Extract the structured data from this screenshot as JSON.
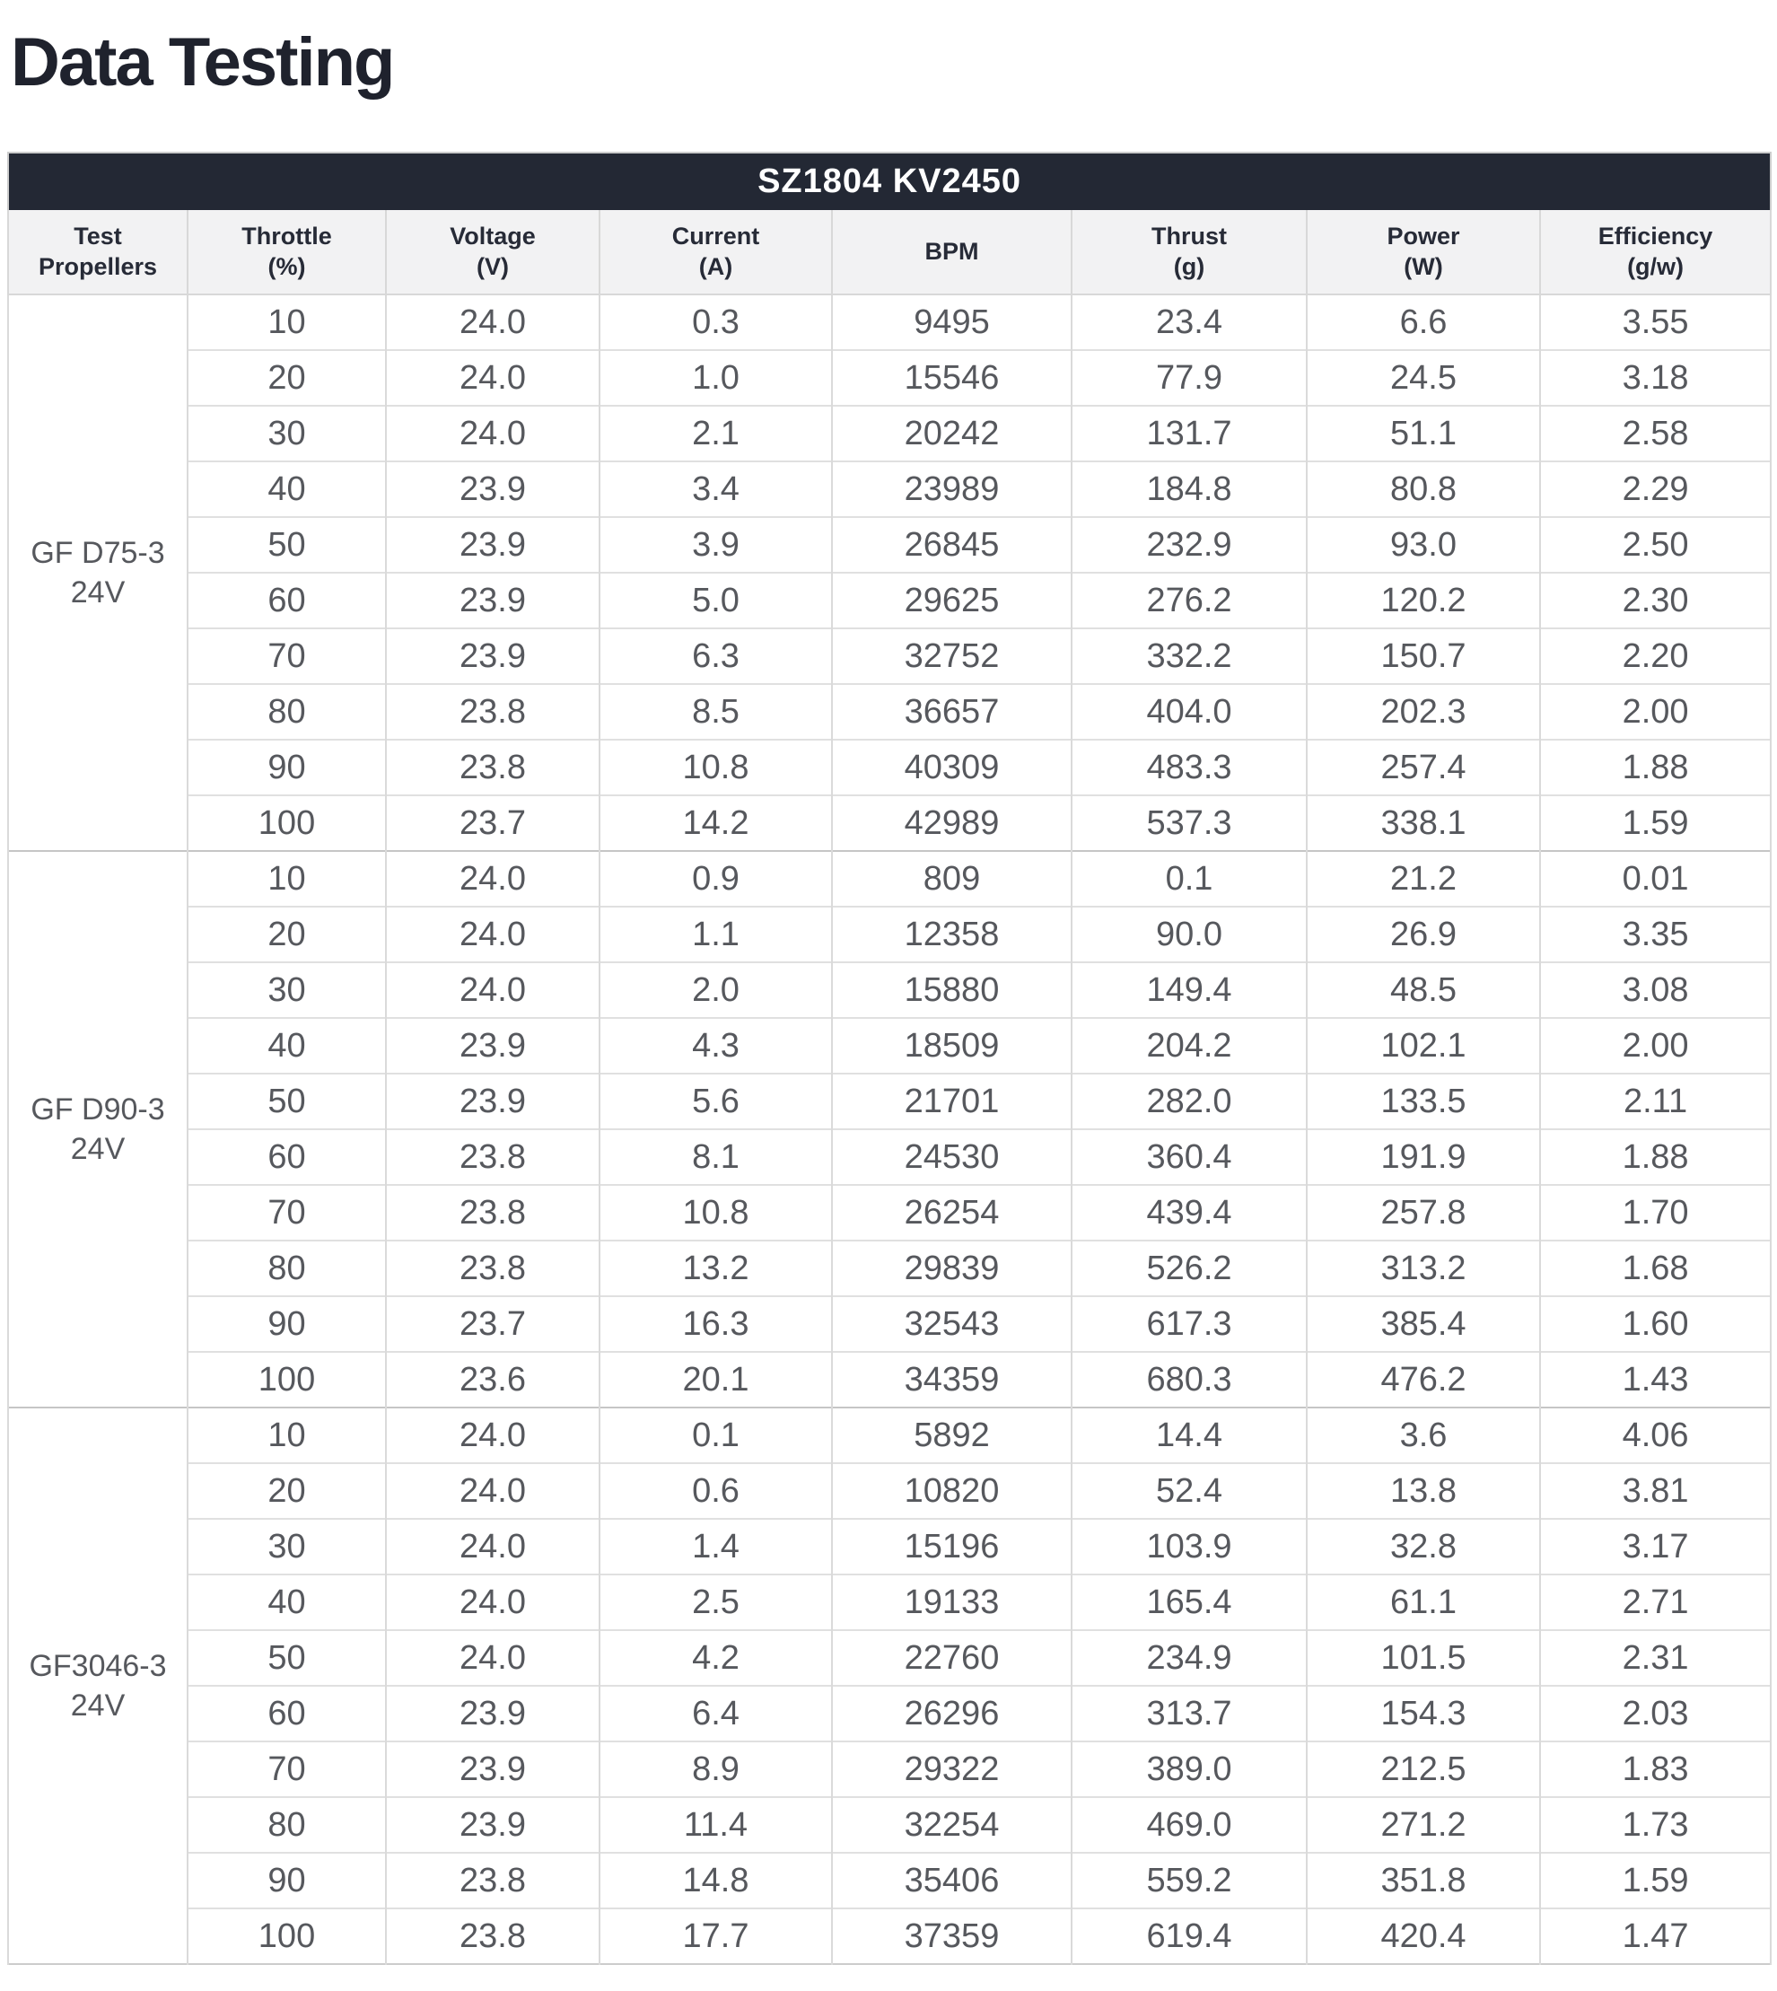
{
  "page": {
    "title": "Data Testing"
  },
  "colors": {
    "header_bar_bg": "#232834",
    "title_text": "#1f222d",
    "header_row_bg": "#f2f2f3",
    "data_text": "#56585d"
  },
  "table": {
    "title": "SZ1804 KV2450",
    "columns": [
      "Test\nPropellers",
      "Throttle\n(%)",
      "Voltage\n(V)",
      "Current\n(A)",
      "BPM",
      "Thrust\n(g)",
      "Power\n(W)",
      "Efficiency\n(g/w)"
    ],
    "groups": [
      {
        "label": "GF D75-3\n24V",
        "rows": [
          [
            "10",
            "24.0",
            "0.3",
            "9495",
            "23.4",
            "6.6",
            "3.55"
          ],
          [
            "20",
            "24.0",
            "1.0",
            "15546",
            "77.9",
            "24.5",
            "3.18"
          ],
          [
            "30",
            "24.0",
            "2.1",
            "20242",
            "131.7",
            "51.1",
            "2.58"
          ],
          [
            "40",
            "23.9",
            "3.4",
            "23989",
            "184.8",
            "80.8",
            "2.29"
          ],
          [
            "50",
            "23.9",
            "3.9",
            "26845",
            "232.9",
            "93.0",
            "2.50"
          ],
          [
            "60",
            "23.9",
            "5.0",
            "29625",
            "276.2",
            "120.2",
            "2.30"
          ],
          [
            "70",
            "23.9",
            "6.3",
            "32752",
            "332.2",
            "150.7",
            "2.20"
          ],
          [
            "80",
            "23.8",
            "8.5",
            "36657",
            "404.0",
            "202.3",
            "2.00"
          ],
          [
            "90",
            "23.8",
            "10.8",
            "40309",
            "483.3",
            "257.4",
            "1.88"
          ],
          [
            "100",
            "23.7",
            "14.2",
            "42989",
            "537.3",
            "338.1",
            "1.59"
          ]
        ]
      },
      {
        "label": "GF D90-3\n24V",
        "rows": [
          [
            "10",
            "24.0",
            "0.9",
            "809",
            "0.1",
            "21.2",
            "0.01"
          ],
          [
            "20",
            "24.0",
            "1.1",
            "12358",
            "90.0",
            "26.9",
            "3.35"
          ],
          [
            "30",
            "24.0",
            "2.0",
            "15880",
            "149.4",
            "48.5",
            "3.08"
          ],
          [
            "40",
            "23.9",
            "4.3",
            "18509",
            "204.2",
            "102.1",
            "2.00"
          ],
          [
            "50",
            "23.9",
            "5.6",
            "21701",
            "282.0",
            "133.5",
            "2.11"
          ],
          [
            "60",
            "23.8",
            "8.1",
            "24530",
            "360.4",
            "191.9",
            "1.88"
          ],
          [
            "70",
            "23.8",
            "10.8",
            "26254",
            "439.4",
            "257.8",
            "1.70"
          ],
          [
            "80",
            "23.8",
            "13.2",
            "29839",
            "526.2",
            "313.2",
            "1.68"
          ],
          [
            "90",
            "23.7",
            "16.3",
            "32543",
            "617.3",
            "385.4",
            "1.60"
          ],
          [
            "100",
            "23.6",
            "20.1",
            "34359",
            "680.3",
            "476.2",
            "1.43"
          ]
        ]
      },
      {
        "label": "GF3046-3\n24V",
        "rows": [
          [
            "10",
            "24.0",
            "0.1",
            "5892",
            "14.4",
            "3.6",
            "4.06"
          ],
          [
            "20",
            "24.0",
            "0.6",
            "10820",
            "52.4",
            "13.8",
            "3.81"
          ],
          [
            "30",
            "24.0",
            "1.4",
            "15196",
            "103.9",
            "32.8",
            "3.17"
          ],
          [
            "40",
            "24.0",
            "2.5",
            "19133",
            "165.4",
            "61.1",
            "2.71"
          ],
          [
            "50",
            "24.0",
            "4.2",
            "22760",
            "234.9",
            "101.5",
            "2.31"
          ],
          [
            "60",
            "23.9",
            "6.4",
            "26296",
            "313.7",
            "154.3",
            "2.03"
          ],
          [
            "70",
            "23.9",
            "8.9",
            "29322",
            "389.0",
            "212.5",
            "1.83"
          ],
          [
            "80",
            "23.9",
            "11.4",
            "32254",
            "469.0",
            "271.2",
            "1.73"
          ],
          [
            "90",
            "23.8",
            "14.8",
            "35406",
            "559.2",
            "351.8",
            "1.59"
          ],
          [
            "100",
            "23.8",
            "17.7",
            "37359",
            "619.4",
            "420.4",
            "1.47"
          ]
        ]
      }
    ]
  }
}
